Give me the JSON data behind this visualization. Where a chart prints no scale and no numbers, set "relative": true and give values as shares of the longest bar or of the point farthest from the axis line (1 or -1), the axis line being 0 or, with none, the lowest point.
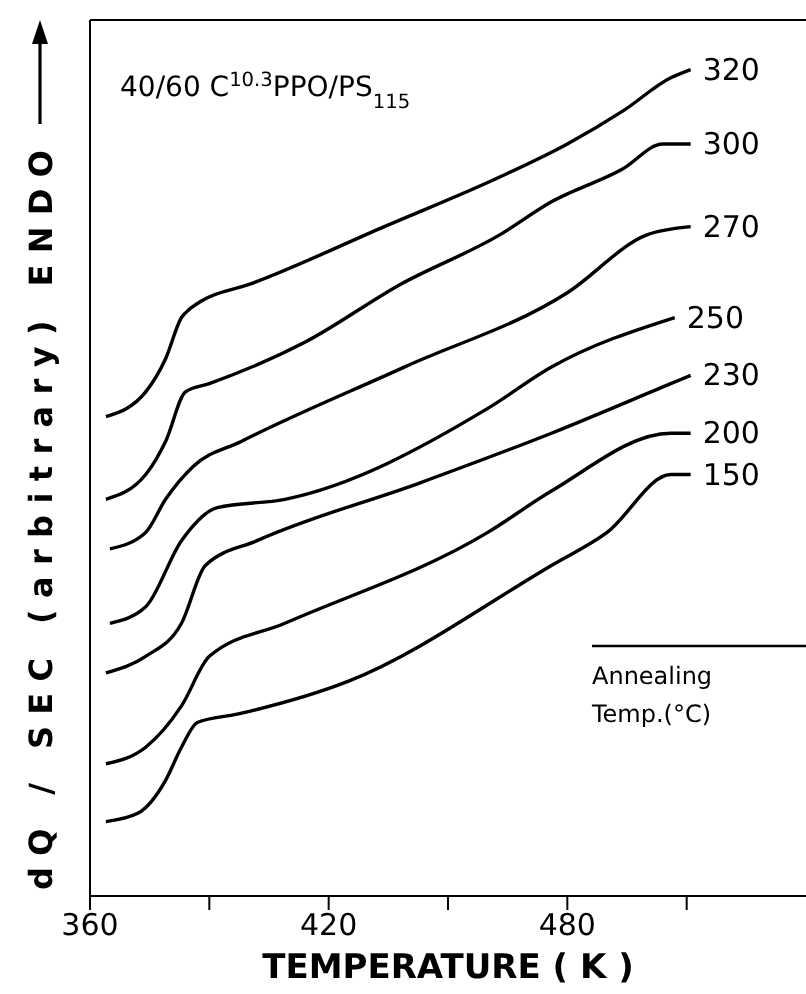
{
  "chart_data": {
    "type": "line",
    "title": "40/60   C$^{10.3}$PPO/PS$_{115}$",
    "xlabel": "TEMPERATURE  ( K )",
    "ylabel": "dQ / SEC   (arbitrary)    ENDO",
    "legend_title": "Annealing Temp.(°C)",
    "relative": true,
    "line_style": "solid",
    "xlim": [
      360,
      540
    ],
    "xticks": [
      360,
      {
        "value": 390,
        "label": null
      },
      420,
      {
        "value": 450,
        "label": null
      },
      480,
      {
        "value": 510,
        "label": null
      }
    ],
    "series": [
      {
        "name": "320",
        "color": "#000000",
        "x": [
          364,
          374,
          379,
          383,
          385,
          388,
          400,
          434,
          463,
          480,
          494,
          506,
          511
        ],
        "values": [
          0.58,
          0.61,
          0.65,
          0.7,
          0.71,
          0.72,
          0.74,
          0.81,
          0.87,
          0.91,
          0.95,
          0.99,
          1
        ]
      },
      {
        "name": "300",
        "color": "#000000",
        "x": [
          364,
          374,
          379,
          384,
          390,
          414,
          438,
          463,
          476,
          494,
          504,
          511
        ],
        "values": [
          0.48,
          0.51,
          0.55,
          0.61,
          0.62,
          0.67,
          0.74,
          0.8,
          0.84,
          0.88,
          0.91,
          0.91
        ]
      },
      {
        "name": "270",
        "color": "#000000",
        "x": [
          365,
          374,
          379,
          386,
          398,
          439,
          480,
          500,
          511
        ],
        "values": [
          0.42,
          0.44,
          0.48,
          0.52,
          0.55,
          0.64,
          0.73,
          0.8,
          0.81
        ]
      },
      {
        "name": "250",
        "color": "#000000",
        "x": [
          365,
          374,
          383,
          392,
          409,
          460,
          476,
          507
        ],
        "values": [
          0.33,
          0.35,
          0.43,
          0.47,
          0.48,
          0.59,
          0.64,
          0.7
        ]
      },
      {
        "name": "230",
        "color": "#000000",
        "x": [
          364,
          374,
          383,
          389,
          402,
          443,
          476,
          506,
          511
        ],
        "values": [
          0.27,
          0.29,
          0.33,
          0.4,
          0.43,
          0.5,
          0.56,
          0.62,
          0.63
        ]
      },
      {
        "name": "200",
        "color": "#000000",
        "x": [
          364,
          374,
          383,
          390,
          409,
          460,
          476,
          506,
          511
        ],
        "values": [
          0.16,
          0.18,
          0.23,
          0.29,
          0.33,
          0.44,
          0.49,
          0.56,
          0.56
        ]
      },
      {
        "name": "150",
        "color": "#000000",
        "x": [
          364,
          372,
          379,
          383,
          387,
          397,
          425,
          476,
          490,
          506,
          511
        ],
        "values": [
          0.09,
          0.1,
          0.14,
          0.18,
          0.21,
          0.22,
          0.26,
          0.4,
          0.44,
          0.51,
          0.51
        ]
      }
    ]
  }
}
